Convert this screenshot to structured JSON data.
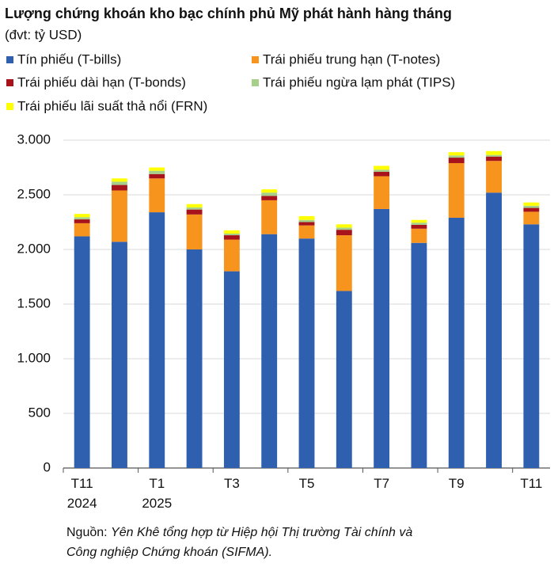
{
  "chart_data": {
    "type": "stacked_bar",
    "title": "Lượng chứng khoán kho bạc chính phủ Mỹ phát hành hàng tháng",
    "subtitle": "(đvt: tỷ USD)",
    "categories": [
      "T11\n2024",
      null,
      "T1\n2025",
      null,
      "T3",
      null,
      "T5",
      null,
      "T7",
      null,
      "T9",
      null,
      "T11"
    ],
    "series": [
      {
        "name": "Tín phiếu (T-bills)",
        "color": "#2f5faf",
        "values": [
          2120,
          2070,
          2340,
          2000,
          1800,
          2140,
          2100,
          1620,
          2370,
          2060,
          2290,
          2520,
          2230
        ]
      },
      {
        "name": "Trái phiếu trung hạn (T-notes)",
        "color": "#f7941d",
        "values": [
          120,
          470,
          310,
          320,
          290,
          310,
          120,
          510,
          300,
          130,
          500,
          290,
          115
        ]
      },
      {
        "name": "Trái phiếu dài hạn (T-bonds)",
        "color": "#a8121a",
        "values": [
          35,
          50,
          40,
          45,
          40,
          40,
          30,
          50,
          40,
          35,
          50,
          40,
          35
        ]
      },
      {
        "name": "Trái phiếu ngừa lạm phát (TIPS)",
        "color": "#a6cf8a",
        "values": [
          20,
          30,
          30,
          20,
          15,
          30,
          20,
          20,
          20,
          20,
          20,
          15,
          20
        ]
      },
      {
        "name": "Trái phiếu lãi suất thả nổi (FRN)",
        "color": "#ffff00",
        "values": [
          30,
          30,
          30,
          30,
          30,
          30,
          35,
          30,
          35,
          25,
          30,
          35,
          30
        ]
      }
    ],
    "ylim": [
      0,
      3000
    ],
    "yticks": [
      0,
      500,
      {
        "value": 1000,
        "label": "1.000"
      },
      {
        "value": 1500,
        "label": "1.500"
      },
      {
        "value": 2000,
        "label": "2.000"
      },
      {
        "value": 2500,
        "label": "2.500"
      },
      {
        "value": 3000,
        "label": "3.000"
      }
    ],
    "grid": true,
    "source_label": "Nguồn:",
    "source": [
      "Yên Khê tổng hợp từ Hiệp hội Thị trường Tài chính và",
      "Công nghiệp Chứng khoán (SIFMA)."
    ]
  }
}
